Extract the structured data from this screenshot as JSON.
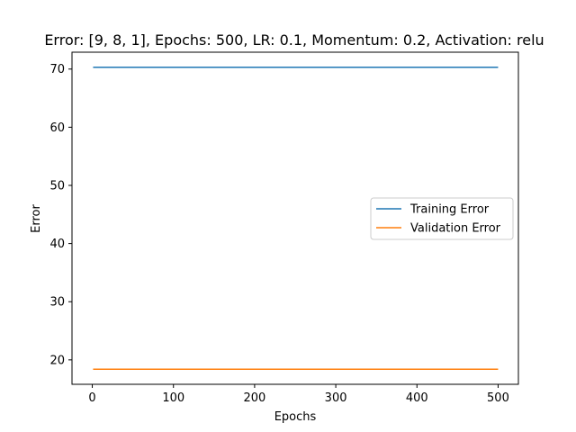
{
  "chart_data": {
    "type": "line",
    "title": "Error: [9, 8, 1], Epochs: 500, LR: 0.1, Momentum: 0.2, Activation: relu",
    "xlabel": "Epochs",
    "ylabel": "Error",
    "xlim": [
      -25,
      525
    ],
    "ylim": [
      15.8,
      72.9
    ],
    "x_ticks": [
      0,
      100,
      200,
      300,
      400,
      500
    ],
    "y_ticks": [
      20,
      30,
      40,
      50,
      60,
      70
    ],
    "grid": false,
    "legend_position": "center-right",
    "series": [
      {
        "name": "Training Error",
        "color": "#1f77b4",
        "x": [
          1,
          500
        ],
        "y": [
          70.3,
          70.3
        ]
      },
      {
        "name": "Validation Error",
        "color": "#ff7f0e",
        "x": [
          1,
          500
        ],
        "y": [
          18.4,
          18.4
        ]
      }
    ]
  }
}
